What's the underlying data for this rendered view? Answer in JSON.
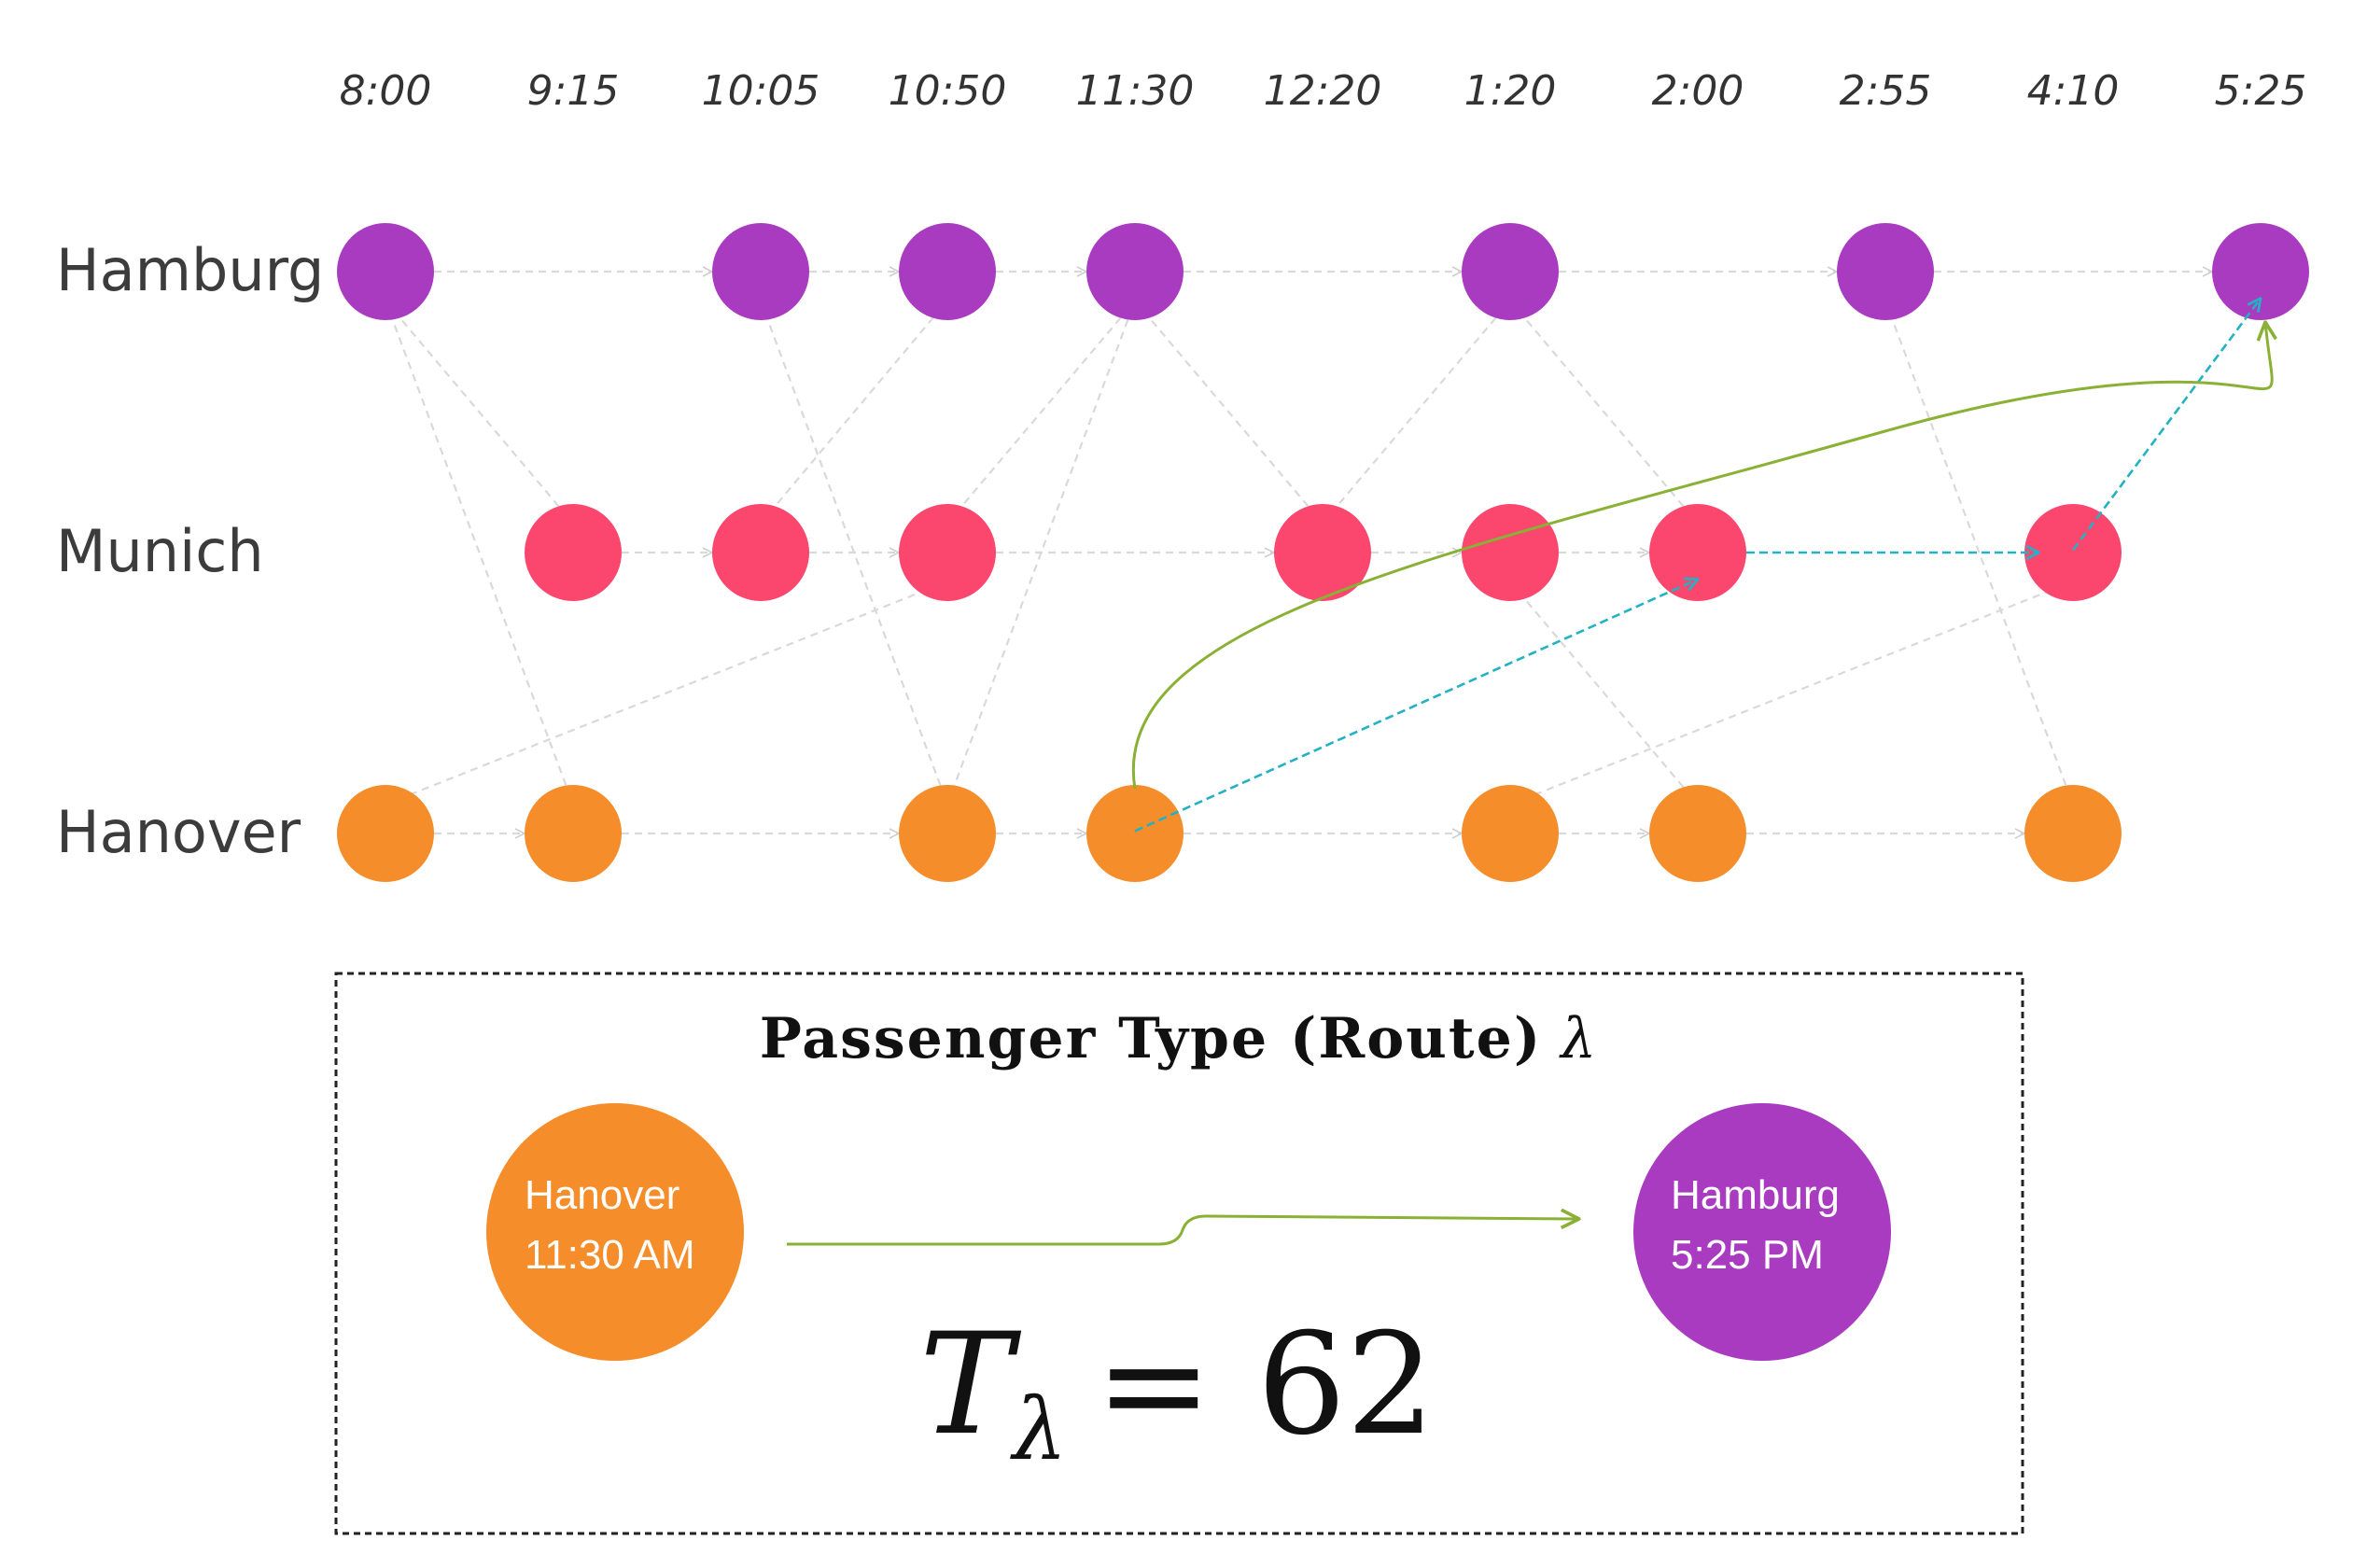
{
  "times": [
    "8:00",
    "9:15",
    "10:05",
    "10:50",
    "11:30",
    "12:20",
    "1:20",
    "2:00",
    "2:55",
    "4:10",
    "5:25"
  ],
  "cities": [
    "Hamburg",
    "Munich",
    "Hanover"
  ],
  "colors": {
    "Hamburg": "#a93bc1",
    "Munich": "#fb466e",
    "Hanover": "#f58d2b",
    "route": "#8ab135",
    "path": "#22b2c4",
    "edge": "#d9d9d9"
  },
  "nodes": {
    "Hamburg": [
      0,
      2,
      3,
      4,
      6,
      8,
      10
    ],
    "Munich": [
      1,
      2,
      3,
      5,
      6,
      7,
      9
    ],
    "Hanover": [
      0,
      1,
      3,
      4,
      6,
      7,
      9
    ]
  },
  "edges": [
    [
      "Hamburg",
      0,
      "Hamburg",
      2
    ],
    [
      "Hamburg",
      2,
      "Hamburg",
      3
    ],
    [
      "Hamburg",
      3,
      "Hamburg",
      4
    ],
    [
      "Hamburg",
      4,
      "Hamburg",
      6
    ],
    [
      "Hamburg",
      6,
      "Hamburg",
      8
    ],
    [
      "Hamburg",
      8,
      "Hamburg",
      10
    ],
    [
      "Munich",
      1,
      "Munich",
      2
    ],
    [
      "Munich",
      2,
      "Munich",
      3
    ],
    [
      "Munich",
      3,
      "Munich",
      5
    ],
    [
      "Munich",
      5,
      "Munich",
      6
    ],
    [
      "Munich",
      6,
      "Munich",
      7
    ],
    [
      "Hanover",
      0,
      "Hanover",
      1
    ],
    [
      "Hanover",
      1,
      "Hanover",
      3
    ],
    [
      "Hanover",
      3,
      "Hanover",
      4
    ],
    [
      "Hanover",
      4,
      "Hanover",
      6
    ],
    [
      "Hanover",
      6,
      "Hanover",
      7
    ],
    [
      "Hanover",
      7,
      "Hanover",
      9
    ],
    [
      "Hamburg",
      0,
      "Munich",
      1
    ],
    [
      "Hamburg",
      0,
      "Hanover",
      1
    ],
    [
      "Hamburg",
      2,
      "Hanover",
      3
    ],
    [
      "Munich",
      2,
      "Hamburg",
      3
    ],
    [
      "Munich",
      3,
      "Hamburg",
      4
    ],
    [
      "Hanover",
      3,
      "Hamburg",
      4
    ],
    [
      "Hamburg",
      4,
      "Munich",
      5
    ],
    [
      "Munich",
      5,
      "Hamburg",
      6
    ],
    [
      "Hamburg",
      6,
      "Munich",
      7
    ],
    [
      "Hanover",
      0,
      "Munich",
      3
    ],
    [
      "Munich",
      6,
      "Hanover",
      7
    ],
    [
      "Hanover",
      6,
      "Munich",
      9
    ],
    [
      "Hamburg",
      8,
      "Hanover",
      9
    ]
  ],
  "path_edges": [
    [
      "Hanover",
      4,
      "Munich",
      7
    ],
    [
      "Munich",
      7,
      "Munich",
      9
    ],
    [
      "Munich",
      9,
      "Hamburg",
      10
    ]
  ],
  "route": {
    "from": [
      "Hanover",
      4
    ],
    "to": [
      "Hamburg",
      10
    ]
  },
  "box": {
    "title": "Passenger Type (Route)",
    "title_symbol": "λ",
    "origin_city": "Hanover",
    "origin_time": "11:30 AM",
    "dest_city": "Hamburg",
    "dest_time": "5:25 PM",
    "formula_T": "T",
    "formula_sub": "λ",
    "formula_rhs": "= 62"
  }
}
